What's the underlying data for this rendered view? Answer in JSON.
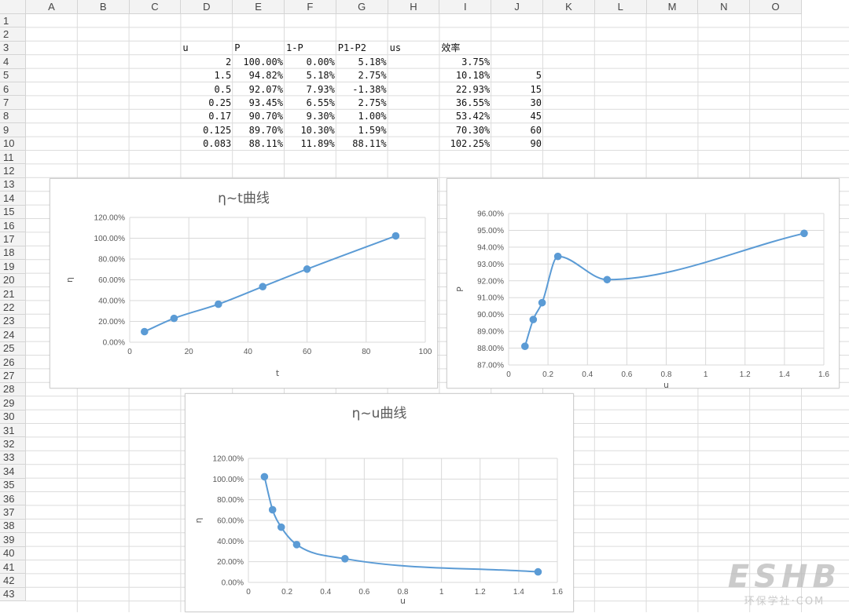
{
  "columns": [
    "A",
    "B",
    "C",
    "D",
    "E",
    "F",
    "G",
    "H",
    "I",
    "J",
    "K",
    "L",
    "M",
    "N",
    "O"
  ],
  "rows": [
    "1",
    "2",
    "3",
    "4",
    "5",
    "6",
    "7",
    "8",
    "9",
    "10",
    "11",
    "12",
    "13",
    "14",
    "15",
    "16",
    "17",
    "18",
    "19",
    "20",
    "21",
    "22",
    "23",
    "24",
    "25",
    "26",
    "27",
    "28",
    "29",
    "30",
    "31",
    "32",
    "33",
    "34",
    "35",
    "36",
    "37",
    "38",
    "39",
    "40",
    "41",
    "42",
    "43"
  ],
  "table": {
    "headers": {
      "D": "u",
      "E": "P",
      "F": "1-P",
      "G": "P1-P2",
      "H": "us",
      "I": "效率"
    },
    "rows": [
      {
        "D": "2",
        "E": "100.00%",
        "F": "0.00%",
        "G": "5.18%",
        "I": "3.75%",
        "J": ""
      },
      {
        "D": "1.5",
        "E": "94.82%",
        "F": "5.18%",
        "G": "2.75%",
        "I": "10.18%",
        "J": "5"
      },
      {
        "D": "0.5",
        "E": "92.07%",
        "F": "7.93%",
        "G": "-1.38%",
        "I": "22.93%",
        "J": "15"
      },
      {
        "D": "0.25",
        "E": "93.45%",
        "F": "6.55%",
        "G": "2.75%",
        "I": "36.55%",
        "J": "30"
      },
      {
        "D": "0.17",
        "E": "90.70%",
        "F": "9.30%",
        "G": "1.00%",
        "I": "53.42%",
        "J": "45"
      },
      {
        "D": "0.125",
        "E": "89.70%",
        "F": "10.30%",
        "G": "1.59%",
        "I": "70.30%",
        "J": "60"
      },
      {
        "D": "0.083",
        "E": "88.11%",
        "F": "11.89%",
        "G": "88.11%",
        "I": "102.25%",
        "J": "90"
      }
    ]
  },
  "chart_data": [
    {
      "id": "eta-t",
      "type": "line",
      "title": "η~t曲线",
      "xlabel": "t",
      "ylabel": "η",
      "xlim": [
        0,
        100
      ],
      "ylim": [
        0,
        1.2
      ],
      "xticks": [
        0,
        20,
        40,
        60,
        80,
        100
      ],
      "xtick_labels": [
        "0",
        "20",
        "40",
        "60",
        "80",
        "100"
      ],
      "yticks": [
        0,
        0.2,
        0.4,
        0.6,
        0.8,
        1.0,
        1.2
      ],
      "ytick_labels": [
        "0.00%",
        "20.00%",
        "40.00%",
        "60.00%",
        "80.00%",
        "100.00%",
        "120.00%"
      ],
      "grid": true,
      "smooth": true,
      "color": "#5b9bd5",
      "x": [
        5,
        15,
        30,
        45,
        60,
        90
      ],
      "y": [
        0.1018,
        0.2293,
        0.3655,
        0.5342,
        0.703,
        1.0225
      ]
    },
    {
      "id": "p-u",
      "type": "line",
      "title": "",
      "xlabel": "u",
      "ylabel": "P",
      "xlim": [
        0,
        1.6
      ],
      "ylim": [
        0.87,
        0.96
      ],
      "xticks": [
        0,
        0.2,
        0.4,
        0.6,
        0.8,
        1.0,
        1.2,
        1.4,
        1.6
      ],
      "xtick_labels": [
        "0",
        "0.2",
        "0.4",
        "0.6",
        "0.8",
        "1",
        "1.2",
        "1.4",
        "1.6"
      ],
      "yticks": [
        0.87,
        0.88,
        0.89,
        0.9,
        0.91,
        0.92,
        0.93,
        0.94,
        0.95,
        0.96
      ],
      "ytick_labels": [
        "87.00%",
        "88.00%",
        "89.00%",
        "90.00%",
        "91.00%",
        "92.00%",
        "93.00%",
        "94.00%",
        "95.00%",
        "96.00%"
      ],
      "grid": true,
      "smooth": true,
      "color": "#5b9bd5",
      "x": [
        0.083,
        0.125,
        0.17,
        0.25,
        0.5,
        1.5
      ],
      "y": [
        0.8811,
        0.897,
        0.907,
        0.9345,
        0.9207,
        0.9482
      ]
    },
    {
      "id": "eta-u",
      "type": "line",
      "title": "η~u曲线",
      "xlabel": "u",
      "ylabel": "η",
      "xlim": [
        0,
        1.6
      ],
      "ylim": [
        0,
        1.2
      ],
      "xticks": [
        0,
        0.2,
        0.4,
        0.6,
        0.8,
        1.0,
        1.2,
        1.4,
        1.6
      ],
      "xtick_labels": [
        "0",
        "0.2",
        "0.4",
        "0.6",
        "0.8",
        "1",
        "1.2",
        "1.4",
        "1.6"
      ],
      "yticks": [
        0,
        0.2,
        0.4,
        0.6,
        0.8,
        1.0,
        1.2
      ],
      "ytick_labels": [
        "0.00%",
        "20.00%",
        "40.00%",
        "60.00%",
        "80.00%",
        "100.00%",
        "120.00%"
      ],
      "grid": true,
      "smooth": true,
      "color": "#5b9bd5",
      "x": [
        0.083,
        0.125,
        0.17,
        0.25,
        0.5,
        1.5
      ],
      "y": [
        1.0225,
        0.703,
        0.5342,
        0.3655,
        0.2293,
        0.1018
      ]
    }
  ],
  "watermark": {
    "main": "ESHB",
    "sub": "环保学社·COM"
  }
}
